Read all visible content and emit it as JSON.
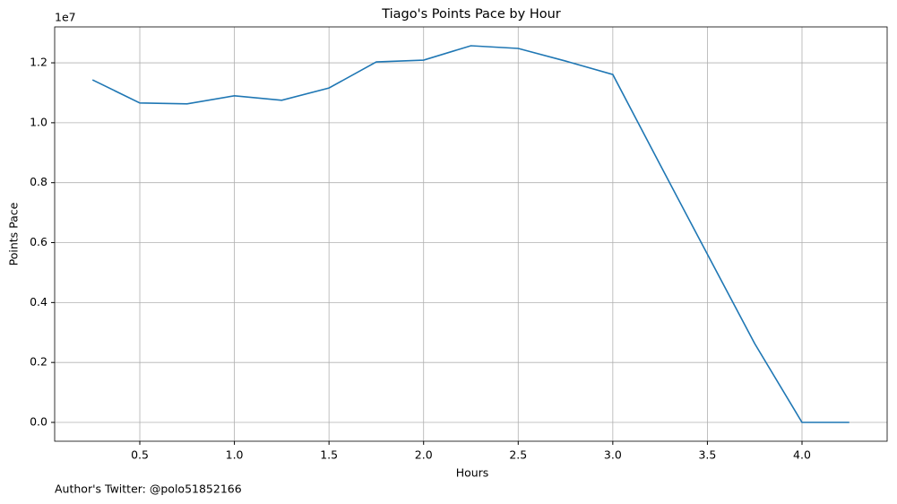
{
  "chart_data": {
    "type": "line",
    "title": "Tiago's Points Pace by Hour",
    "x_label": "Hours",
    "y_label": "Points Pace",
    "y_offset_label": "1e7",
    "footnote": "Author's Twitter: @polo51852166",
    "x": [
      0.25,
      0.5,
      0.75,
      1.0,
      1.25,
      1.5,
      1.75,
      2.0,
      2.25,
      2.5,
      2.75,
      3.0,
      3.25,
      3.5,
      3.75,
      4.0,
      4.25
    ],
    "series": [
      {
        "name": "Points Pace",
        "color": "#1f77b4",
        "values": [
          11430000,
          10660000,
          10630000,
          10900000,
          10750000,
          11160000,
          12030000,
          12090000,
          12570000,
          12480000,
          12060000,
          11610000,
          8600000,
          5610000,
          2630000,
          0,
          0
        ]
      }
    ],
    "xlim": [
      0.05,
      4.45
    ],
    "xticks": [
      0.5,
      {
        "value": 1,
        "label": "1.0"
      },
      1.5,
      {
        "value": 2,
        "label": "2.0"
      },
      2.5,
      {
        "value": 3,
        "label": "3.0"
      },
      3.5,
      {
        "value": 4,
        "label": "4.0"
      }
    ],
    "ylim": [
      -628500,
      13198500
    ],
    "yticks": [
      {
        "value": 0,
        "label": "0.0"
      },
      {
        "value": 2000000,
        "label": "0.2"
      },
      {
        "value": 4000000,
        "label": "0.4"
      },
      {
        "value": 6000000,
        "label": "0.6"
      },
      {
        "value": 8000000,
        "label": "0.8"
      },
      {
        "value": 10000000,
        "label": "1.0"
      },
      {
        "value": 12000000,
        "label": "1.2"
      }
    ],
    "grid": true
  }
}
